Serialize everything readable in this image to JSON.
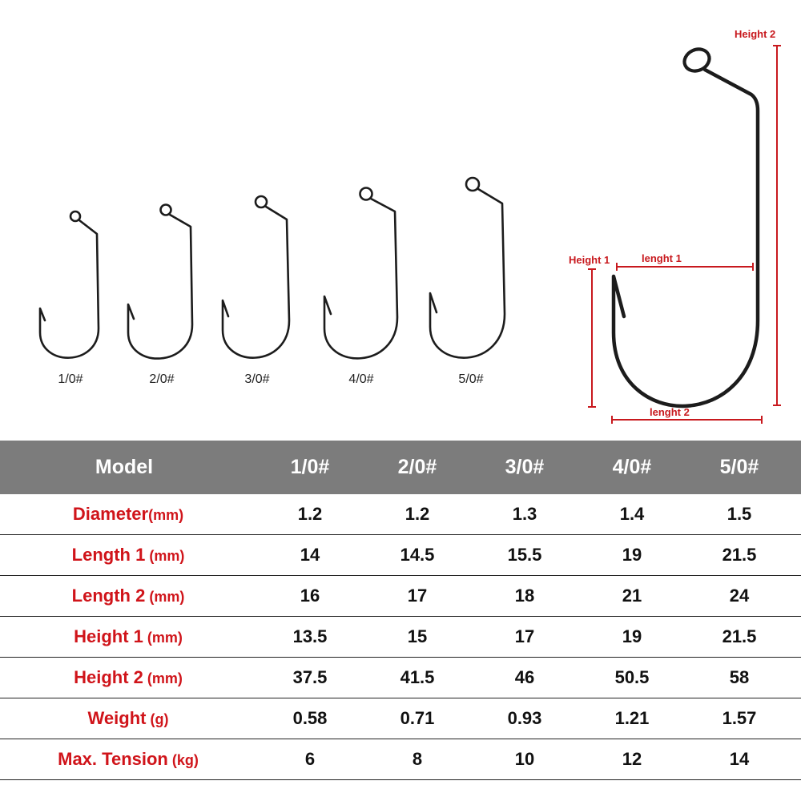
{
  "hook_sizes": [
    "1/0#",
    "2/0#",
    "3/0#",
    "4/0#",
    "5/0#"
  ],
  "dimension_labels": {
    "height_2": "Height 2",
    "height_1": "Height 1",
    "lenght_1": "lenght 1",
    "lenght_2": "lenght 2"
  },
  "colors": {
    "header_bg": "#7c7c7c",
    "param_red": "#d0141a",
    "dimension_red": "#c8191e"
  },
  "table": {
    "header": [
      "Model",
      "1/0#",
      "2/0#",
      "3/0#",
      "4/0#",
      "5/0#"
    ],
    "rows": [
      {
        "param": "Diameter",
        "unit": "(mm)",
        "values": [
          "1.2",
          "1.2",
          "1.3",
          "1.4",
          "1.5"
        ]
      },
      {
        "param": "Length 1",
        "unit": " (mm)",
        "values": [
          "14",
          "14.5",
          "15.5",
          "19",
          "21.5"
        ]
      },
      {
        "param": "Length 2",
        "unit": " (mm)",
        "values": [
          "16",
          "17",
          "18",
          "21",
          "24"
        ]
      },
      {
        "param": "Height 1",
        "unit": " (mm)",
        "values": [
          "13.5",
          "15",
          "17",
          "19",
          "21.5"
        ]
      },
      {
        "param": "Height 2",
        "unit": " (mm)",
        "values": [
          "37.5",
          "41.5",
          "46",
          "50.5",
          "58"
        ]
      },
      {
        "param": "Weight",
        "unit": " (g)",
        "values": [
          "0.58",
          "0.71",
          "0.93",
          "1.21",
          "1.57"
        ]
      },
      {
        "param": "Max. Tension",
        "unit": " (kg)",
        "values": [
          "6",
          "8",
          "10",
          "12",
          "14"
        ]
      }
    ]
  }
}
